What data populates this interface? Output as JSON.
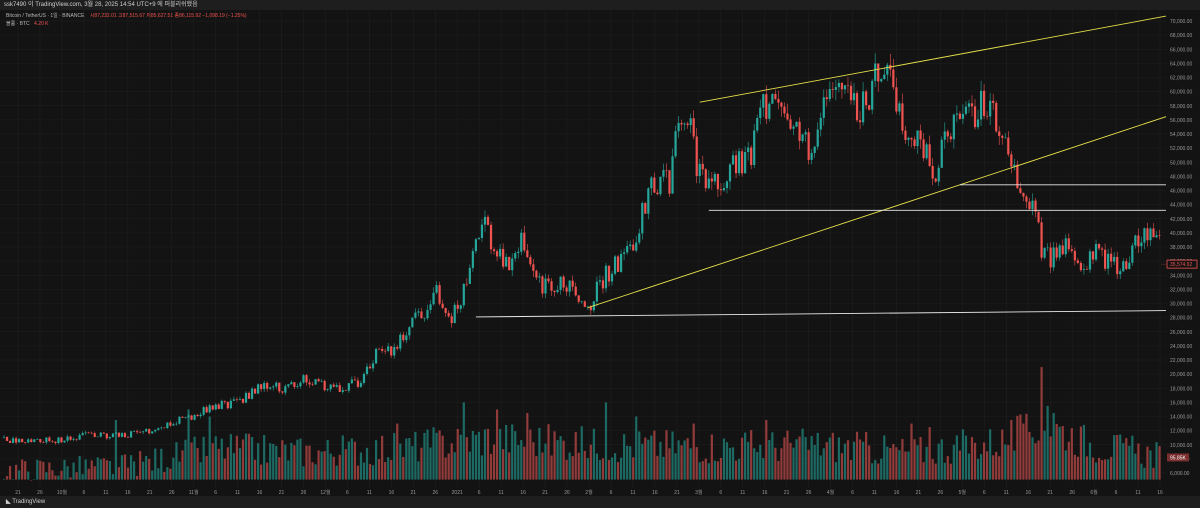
{
  "header": {
    "snapshot_text": "ssk7490 이 TradingView.com, 3월 28, 2025 14:54 UTC+9 에 퍼블리쉬했음"
  },
  "legend": {
    "symbol": "Bitcoin / TetherUS · 1일 · BINANCE",
    "ohlc": "시87,232.01  고87,515.67  저85,627.51  종86,115.92  −1,098.19 (−1.25%)",
    "volume_label": "볼륨 · BTC",
    "volume_value": "4.20 K"
  },
  "footer": {
    "logo_text": "TradingView"
  },
  "colors": {
    "background": "#131313",
    "up": "#26a69a",
    "down": "#ef5350",
    "trendline": "#e6e04a",
    "support": "#e8e8e8",
    "grid": "#1f1f1f"
  },
  "chart_data": {
    "type": "candlestick",
    "symbol": "BTCUSDT",
    "exchange": "BINANCE",
    "interval": "1D",
    "y_axis": {
      "ticks": [
        "70,000.00",
        "68,000.00",
        "66,000.00",
        "64,000.00",
        "62,000.00",
        "60,000.00",
        "58,000.00",
        "56,000.00",
        "54,000.00",
        "52,000.00",
        "50,000.00",
        "48,000.00",
        "46,000.00",
        "44,000.00",
        "42,000.00",
        "40,000.00",
        "38,000.00",
        "36,000.00",
        "34,000.00",
        "32,000.00",
        "30,000.00",
        "28,000.00",
        "26,000.00",
        "24,000.00",
        "22,000.00",
        "20,000.00",
        "18,000.00",
        "16,000.00",
        "14,000.00",
        "12,000.00",
        "10,000.00",
        "8,000.00",
        "6,000.00"
      ],
      "range": [
        5000,
        71500
      ],
      "current_price_label": "35,574.92",
      "volume_label": "95.85K"
    },
    "x_axis": {
      "ticks": [
        "21",
        "26",
        "10월",
        "6",
        "11",
        "16",
        "21",
        "26",
        "11월",
        "6",
        "11",
        "16",
        "21",
        "26",
        "12월",
        "6",
        "11",
        "16",
        "21",
        "26",
        "2021",
        "6",
        "11",
        "16",
        "21",
        "26",
        "2월",
        "6",
        "11",
        "16",
        "21",
        "3월",
        "6",
        "11",
        "16",
        "21",
        "26",
        "4월",
        "6",
        "11",
        "16",
        "21",
        "26",
        "5월",
        "6",
        "11",
        "16",
        "21",
        "26",
        "6월",
        "6",
        "11",
        "16"
      ]
    },
    "price_path": [
      [
        0,
        10700
      ],
      [
        8,
        10600
      ],
      [
        18,
        10700
      ],
      [
        27,
        11300
      ],
      [
        35,
        11400
      ],
      [
        45,
        11600
      ],
      [
        55,
        13100
      ],
      [
        62,
        13800
      ],
      [
        69,
        15400
      ],
      [
        73,
        15700
      ],
      [
        78,
        16000
      ],
      [
        83,
        17700
      ],
      [
        88,
        18700
      ],
      [
        93,
        18000
      ],
      [
        98,
        19200
      ],
      [
        103,
        18900
      ],
      [
        110,
        17800
      ],
      [
        118,
        19000
      ],
      [
        123,
        22700
      ],
      [
        129,
        23200
      ],
      [
        134,
        27000
      ],
      [
        139,
        29000
      ],
      [
        143,
        31500
      ],
      [
        148,
        28000
      ],
      [
        152,
        32000
      ],
      [
        154,
        35500
      ],
      [
        159,
        40800
      ],
      [
        166,
        35500
      ],
      [
        171,
        39000
      ],
      [
        178,
        32200
      ],
      [
        184,
        33000
      ],
      [
        191,
        31000
      ],
      [
        194,
        30300
      ],
      [
        199,
        34000
      ],
      [
        208,
        38000
      ],
      [
        214,
        47000
      ],
      [
        220,
        47500
      ],
      [
        224,
        57000
      ],
      [
        226,
        56000
      ],
      [
        230,
        48000
      ],
      [
        234,
        46000
      ],
      [
        238,
        48000
      ],
      [
        243,
        49800
      ],
      [
        247,
        51000
      ],
      [
        250,
        56000
      ],
      [
        254,
        61000
      ],
      [
        258,
        58000
      ],
      [
        262,
        55000
      ],
      [
        266,
        51500
      ],
      [
        270,
        57000
      ],
      [
        274,
        59000
      ],
      [
        278,
        59000
      ],
      [
        282,
        57000
      ],
      [
        286,
        59500
      ],
      [
        289,
        63000
      ],
      [
        291,
        64500
      ],
      [
        295,
        58000
      ],
      [
        298,
        55000
      ],
      [
        302,
        53000
      ],
      [
        305,
        51000
      ],
      [
        308,
        49000
      ],
      [
        312,
        54500
      ],
      [
        315,
        55000
      ],
      [
        320,
        57000
      ],
      [
        323,
        58000
      ],
      [
        326,
        57000
      ],
      [
        327,
        56500
      ],
      [
        331,
        55000
      ],
      [
        334,
        49000
      ],
      [
        337,
        46500
      ],
      [
        340,
        43500
      ],
      [
        343,
        38000
      ],
      [
        346,
        36000
      ],
      [
        349,
        37500
      ],
      [
        352,
        39000
      ],
      [
        356,
        35500
      ],
      [
        361,
        37500
      ],
      [
        366,
        35500
      ],
      [
        371,
        35500
      ],
      [
        375,
        39000
      ],
      [
        378,
        40000
      ],
      [
        381,
        38300
      ],
      [
        382,
        38000
      ]
    ],
    "volume_profile": [
      [
        0,
        6500
      ],
      [
        40,
        7000
      ],
      [
        70,
        9500
      ],
      [
        100,
        9000
      ],
      [
        130,
        9500
      ],
      [
        160,
        11000
      ],
      [
        200,
        10000
      ],
      [
        240,
        9800
      ],
      [
        270,
        10000
      ],
      [
        300,
        9000
      ],
      [
        330,
        10500
      ],
      [
        345,
        13000
      ],
      [
        360,
        10000
      ],
      [
        382,
        8500
      ]
    ],
    "volume_spikes": [
      [
        37,
        13500
      ],
      [
        61,
        15000
      ],
      [
        68,
        14000
      ],
      [
        130,
        13000
      ],
      [
        152,
        16000
      ],
      [
        163,
        15000
      ],
      [
        173,
        14500
      ],
      [
        199,
        16000
      ],
      [
        209,
        14000
      ],
      [
        228,
        13000
      ],
      [
        252,
        13500
      ],
      [
        300,
        13000
      ],
      [
        306,
        12500
      ],
      [
        337,
        13000
      ],
      [
        343,
        21000
      ],
      [
        345,
        15500
      ],
      [
        347,
        14500
      ]
    ],
    "trend_lines": [
      {
        "name": "channel-top",
        "p1": [
          230,
          58500
        ],
        "p2": [
          388,
          71000
        ]
      },
      {
        "name": "channel-bottom",
        "p1": [
          193,
          29400
        ],
        "p2": [
          388,
          57000
        ]
      }
    ],
    "horizontal_levels": [
      {
        "name": "support-low",
        "from": 156,
        "to": 388,
        "value": 28100
      },
      {
        "name": "support-mid",
        "from": 233,
        "to": 388,
        "value": 43200
      },
      {
        "name": "support-high",
        "from": 316,
        "to": 388,
        "value": 46800
      }
    ]
  }
}
